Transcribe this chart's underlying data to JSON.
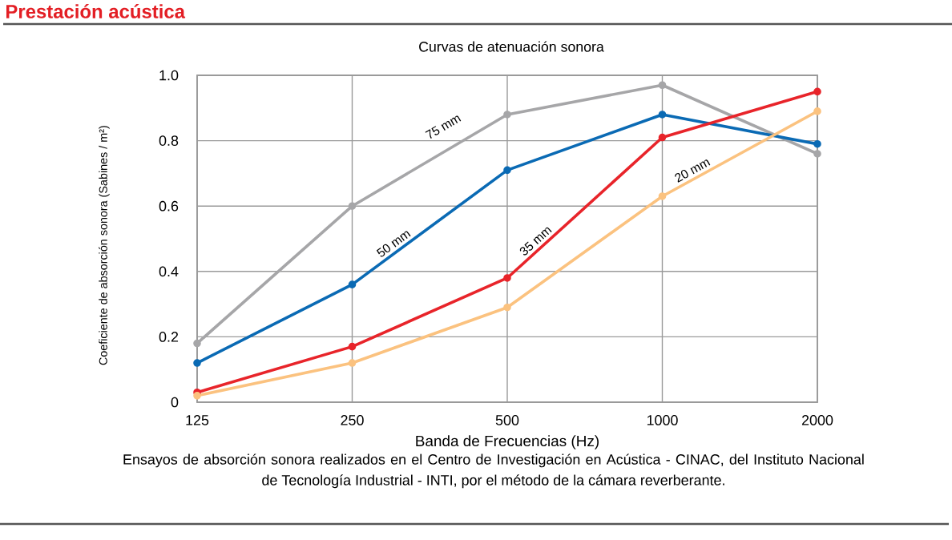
{
  "chart_data": {
    "type": "line",
    "title": "Prestación acústica",
    "subtitle": "Curvas de atenuación sonora",
    "xlabel": "Banda de Frecuencias (Hz)",
    "ylabel": "Coeficiente de absorción sonora (Sabines / m²)",
    "annotations": [
      "Ensayos de absorción sonora realizados en el Centro de Investigación en Acústica - CINAC, del Instituto Nacional de Tecnología Industrial - INTI, por el método de la cámara reverberante."
    ],
    "categories": [
      "125",
      "250",
      "500",
      "1000",
      "2000"
    ],
    "series": [
      {
        "name": "75 mm",
        "color": "#a6a6a8",
        "values": [
          0.18,
          0.6,
          0.88,
          0.97,
          0.76
        ]
      },
      {
        "name": "50 mm",
        "color": "#0a6ab4",
        "values": [
          0.12,
          0.36,
          0.71,
          0.88,
          0.79
        ]
      },
      {
        "name": "35 mm",
        "color": "#e8242a",
        "values": [
          0.03,
          0.17,
          0.38,
          0.81,
          0.95
        ]
      },
      {
        "name": "20 mm",
        "color": "#fbc27f",
        "values": [
          0.02,
          0.12,
          0.29,
          0.63,
          0.89
        ]
      }
    ],
    "ylim": [
      0,
      1
    ],
    "yticks": [
      0,
      0.2,
      0.4,
      0.6,
      0.8,
      {
        "value": 1,
        "label": "1.0"
      }
    ],
    "grid": true,
    "marker": "circle",
    "line_style": "solid"
  }
}
